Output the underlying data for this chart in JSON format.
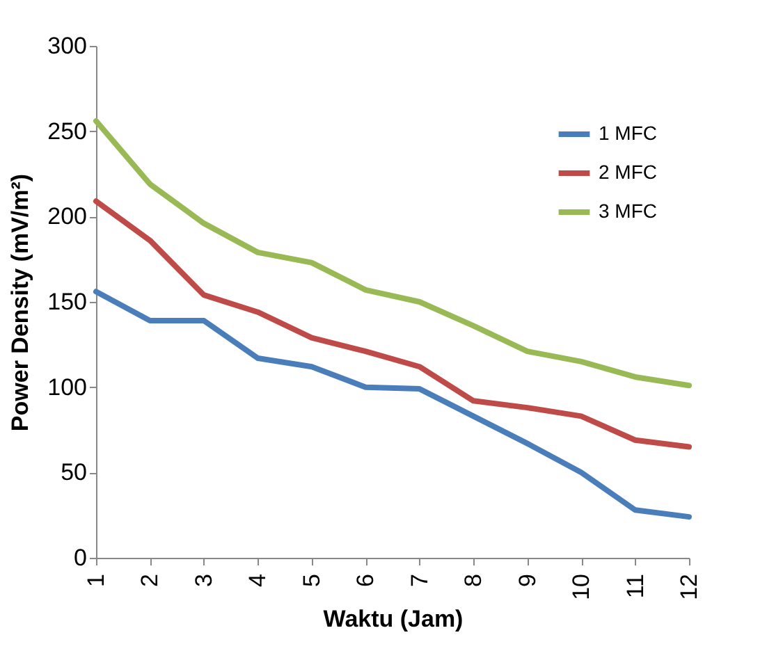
{
  "chart_data": {
    "type": "line",
    "xlabel": "Waktu (Jam)",
    "ylabel": "Power Density  (mV/m²)",
    "categories": [
      "1",
      "2",
      "3",
      "4",
      "5",
      "6",
      "7",
      "8",
      "9",
      "10",
      "11",
      "12"
    ],
    "series": [
      {
        "name": "1 MFC",
        "color": "#4a7ebb",
        "values": [
          156,
          139,
          139,
          117,
          112,
          100,
          99,
          83,
          67,
          50,
          28,
          24
        ]
      },
      {
        "name": "2 MFC",
        "color": "#be4b48",
        "values": [
          209,
          186,
          154,
          144,
          129,
          121,
          112,
          92,
          88,
          83,
          69,
          65
        ]
      },
      {
        "name": "3 MFC",
        "color": "#98b954",
        "values": [
          256,
          219,
          196,
          179,
          173,
          157,
          150,
          136,
          121,
          115,
          106,
          101
        ]
      }
    ],
    "ylim": [
      0,
      300
    ],
    "yticks": [
      0,
      50,
      100,
      150,
      200,
      250,
      300
    ],
    "legend": "top right",
    "line_style": "solid",
    "marker": "none"
  }
}
